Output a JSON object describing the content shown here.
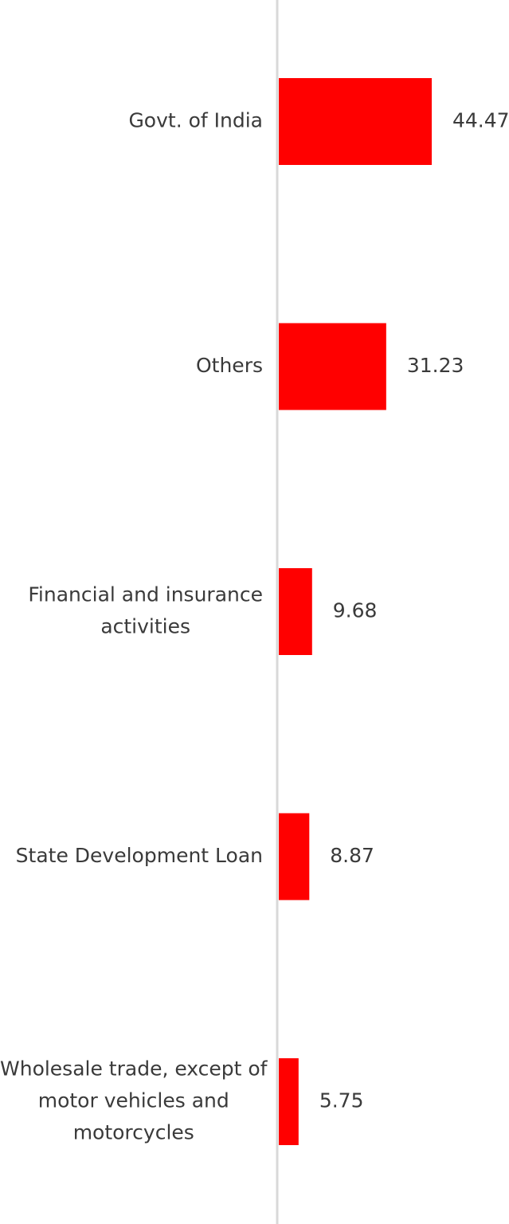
{
  "chart_data": {
    "type": "bar",
    "orientation": "horizontal",
    "categories": [
      "Govt. of India",
      "Others",
      "Financial and insurance activities",
      "State Development Loan",
      "Wholesale trade, except of motor vehicles and motorcycles"
    ],
    "category_lines": [
      [
        "Govt. of India"
      ],
      [
        "Others"
      ],
      [
        "Financial and insurance",
        "activities"
      ],
      [
        "State Development Loan"
      ],
      [
        "Wholesale trade, except of",
        "motor vehicles and",
        "motorcycles"
      ]
    ],
    "values": [
      44.47,
      31.23,
      9.68,
      8.87,
      5.75
    ],
    "value_labels": [
      "44.47",
      "31.23",
      "9.68",
      "8.87",
      "5.75"
    ],
    "title": "",
    "xlabel": "",
    "ylabel": "",
    "grid": false,
    "legend": "none",
    "bar_color": "#ff0000",
    "axis_color": "#d9d9d9",
    "text_color": "#3a3a3a"
  }
}
